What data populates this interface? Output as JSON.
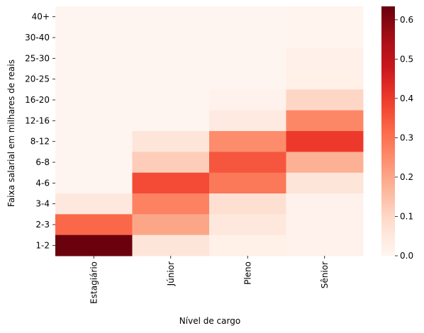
{
  "chart_data": {
    "type": "heatmap",
    "title": "",
    "xlabel": "Nível de cargo",
    "ylabel": "Faixa salarial em milhares de reais",
    "x_categories": [
      "Estagiário",
      "Júnior",
      "Pleno",
      "Sênior"
    ],
    "y_categories": [
      "40+",
      "30-40",
      "25-30",
      "20-25",
      "16-20",
      "12-16",
      "8-12",
      "6-8",
      "4-6",
      "3-4",
      "2-3",
      "1-2"
    ],
    "values": [
      [
        0.0,
        0.0,
        0.0,
        0.005
      ],
      [
        0.0,
        0.0,
        0.0,
        0.005
      ],
      [
        0.0,
        0.0,
        0.0,
        0.015
      ],
      [
        0.0,
        0.0,
        0.0,
        0.02
      ],
      [
        0.0,
        0.0,
        0.01,
        0.1
      ],
      [
        0.0,
        0.0,
        0.04,
        0.26
      ],
      [
        0.0,
        0.06,
        0.25,
        0.4
      ],
      [
        0.0,
        0.12,
        0.35,
        0.18
      ],
      [
        0.0,
        0.37,
        0.29,
        0.06
      ],
      [
        0.05,
        0.27,
        0.08,
        0.01
      ],
      [
        0.32,
        0.2,
        0.05,
        0.01
      ],
      [
        0.63,
        0.06,
        0.02,
        0.01
      ]
    ],
    "colormap": "Reds",
    "colorbar": {
      "range": [
        0.0,
        0.634
      ],
      "ticks": [
        "0.0",
        "0.1",
        "0.2",
        "0.3",
        "0.4",
        "0.5",
        "0.6"
      ]
    }
  }
}
